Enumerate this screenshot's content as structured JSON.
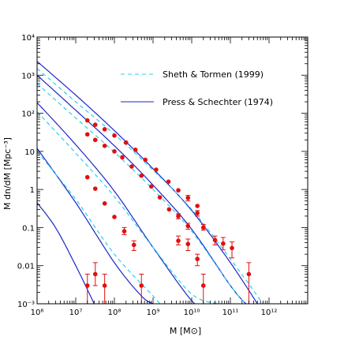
{
  "chart_data": {
    "type": "line",
    "title": "",
    "xlabel": "M  [M⊙]",
    "ylabel": "M dn/dM  [Mpc⁻³]",
    "x_scale": "log",
    "y_scale": "log",
    "xlim": [
      1000000,
      10000000000000
    ],
    "ylim": [
      0.001,
      10000
    ],
    "x_ticks": [
      {
        "value": 1000000,
        "label": "10⁶"
      },
      {
        "value": 10000000,
        "label": "10⁷"
      },
      {
        "value": 100000000,
        "label": "10⁸"
      },
      {
        "value": 1000000000,
        "label": "10⁹"
      },
      {
        "value": 10000000000,
        "label": "10¹⁰"
      },
      {
        "value": 100000000000,
        "label": "10¹¹"
      },
      {
        "value": 1000000000000,
        "label": "10¹²"
      }
    ],
    "y_ticks": [
      {
        "value": 0.001,
        "label": "10⁻³"
      },
      {
        "value": 0.01,
        "label": "0.01"
      },
      {
        "value": 0.1,
        "label": "0.1"
      },
      {
        "value": 1,
        "label": "1"
      },
      {
        "value": 10,
        "label": "10"
      },
      {
        "value": 100,
        "label": "10²"
      },
      {
        "value": 1000,
        "label": "10³"
      },
      {
        "value": 10000,
        "label": "10⁴"
      }
    ],
    "legend": {
      "placement": "top-right",
      "entries": [
        {
          "label": "Sheth & Tormen (1999)",
          "style": "dashed",
          "color": "#22d3ee"
        },
        {
          "label": "Press & Schechter (1974)",
          "style": "solid",
          "color": "#1d27c9"
        }
      ]
    },
    "colors": {
      "press_schechter": "#1d27c9",
      "sheth_tormen": "#22d3ee",
      "points": "#e01010"
    },
    "curves": [
      {
        "model": "Press & Schechter (1974)",
        "style": "solid",
        "x": [
          1000000,
          10000000,
          100000000,
          1000000000,
          10000000000,
          100000000000,
          500000000000
        ],
        "y": [
          2300,
          300,
          35,
          3.5,
          0.28,
          0.012,
          0.001
        ]
      },
      {
        "model": "Press & Schechter (1974)",
        "style": "solid",
        "x": [
          1000000,
          10000000,
          100000000,
          1000000000,
          10000000000,
          100000000000,
          250000000000
        ],
        "y": [
          1000,
          120,
          14,
          1.3,
          0.09,
          0.003,
          0.001
        ]
      },
      {
        "model": "Press & Schechter (1974)",
        "style": "solid",
        "x": [
          1000000,
          10000000,
          100000000,
          1000000000,
          10000000000,
          20000000000
        ],
        "y": [
          190,
          15,
          0.9,
          0.03,
          0.0012,
          0.001
        ]
      },
      {
        "model": "Press & Schechter (1974)",
        "style": "solid",
        "x": [
          1000000,
          10000000,
          100000000,
          500000000,
          1000000000
        ],
        "y": [
          12,
          0.45,
          0.012,
          0.0016,
          0.001
        ]
      },
      {
        "model": "Press & Schechter (1974)",
        "style": "solid",
        "x": [
          1000000,
          3000000,
          10000000,
          30000000
        ],
        "y": [
          0.45,
          0.1,
          0.01,
          0.001
        ]
      },
      {
        "model": "Sheth & Tormen (1999)",
        "style": "dashed",
        "x": [
          1000000,
          10000000,
          100000000,
          1000000000,
          10000000000,
          100000000000,
          700000000000
        ],
        "y": [
          1500,
          200,
          28,
          3.2,
          0.3,
          0.015,
          0.001
        ]
      },
      {
        "model": "Sheth & Tormen (1999)",
        "style": "dashed",
        "x": [
          1000000,
          10000000,
          100000000,
          1000000000,
          10000000000,
          100000000000,
          250000000000
        ],
        "y": [
          600,
          75,
          9.5,
          1,
          0.08,
          0.003,
          0.001
        ]
      },
      {
        "model": "Sheth & Tormen (1999)",
        "style": "dashed",
        "x": [
          1000000,
          10000000,
          100000000,
          1000000000,
          10000000000,
          50000000000
        ],
        "y": [
          110,
          9,
          0.65,
          0.03,
          0.0018,
          0.001
        ]
      },
      {
        "model": "Sheth & Tormen (1999)",
        "style": "dashed",
        "x": [
          1000000,
          10000000,
          100000000,
          1000000000,
          1500000000
        ],
        "y": [
          10,
          0.55,
          0.02,
          0.0016,
          0.001
        ]
      }
    ],
    "points": [
      {
        "x": 20000000,
        "y": 65
      },
      {
        "x": 32000000,
        "y": 50
      },
      {
        "x": 56000000,
        "y": 38
      },
      {
        "x": 100000000,
        "y": 26
      },
      {
        "x": 200000000,
        "y": 17
      },
      {
        "x": 350000000,
        "y": 11
      },
      {
        "x": 630000000,
        "y": 6
      },
      {
        "x": 1200000000,
        "y": 3.3
      },
      {
        "x": 2500000000,
        "y": 1.6
      },
      {
        "x": 4500000000,
        "y": 0.95
      },
      {
        "x": 8000000000,
        "y": 0.6,
        "err": [
          0.5,
          0.7
        ]
      },
      {
        "x": 14000000000,
        "y": 0.37
      },
      {
        "x": 20000000,
        "y": 28
      },
      {
        "x": 32000000,
        "y": 20
      },
      {
        "x": 56000000,
        "y": 14
      },
      {
        "x": 100000000,
        "y": 10
      },
      {
        "x": 160000000,
        "y": 7
      },
      {
        "x": 280000000,
        "y": 4
      },
      {
        "x": 500000000,
        "y": 2.3
      },
      {
        "x": 900000000,
        "y": 1.2
      },
      {
        "x": 1500000000,
        "y": 0.62
      },
      {
        "x": 2600000000,
        "y": 0.3
      },
      {
        "x": 4500000000,
        "y": 0.2,
        "err": [
          0.17,
          0.23
        ]
      },
      {
        "x": 8000000000,
        "y": 0.11,
        "err": [
          0.09,
          0.13
        ]
      },
      {
        "x": 14000000000,
        "y": 0.24,
        "err": [
          0.2,
          0.28
        ]
      },
      {
        "x": 20000000000,
        "y": 0.1,
        "err": [
          0.085,
          0.12
        ]
      },
      {
        "x": 40000000000,
        "y": 0.047,
        "err": [
          0.035,
          0.06
        ]
      },
      {
        "x": 65000000000,
        "y": 0.038,
        "err": [
          0.026,
          0.055
        ]
      },
      {
        "x": 110000000000,
        "y": 0.029,
        "err": [
          0.016,
          0.042
        ]
      },
      {
        "x": 300000000000,
        "y": 0.006,
        "err": [
          0.001,
          0.012
        ]
      },
      {
        "x": 20000000,
        "y": 2.1
      },
      {
        "x": 32000000,
        "y": 1.05
      },
      {
        "x": 56000000,
        "y": 0.43
      },
      {
        "x": 100000000,
        "y": 0.19
      },
      {
        "x": 180000000,
        "y": 0.08,
        "err": [
          0.065,
          0.1
        ]
      },
      {
        "x": 320000000,
        "y": 0.035,
        "err": [
          0.025,
          0.045
        ]
      },
      {
        "x": 4500000000,
        "y": 0.045,
        "err": [
          0.035,
          0.06
        ]
      },
      {
        "x": 8000000000,
        "y": 0.037,
        "err": [
          0.025,
          0.05
        ]
      },
      {
        "x": 14000000000,
        "y": 0.015,
        "err": [
          0.01,
          0.02
        ]
      },
      {
        "x": 20000000000,
        "y": 0.003,
        "err": [
          0.001,
          0.006
        ]
      },
      {
        "x": 20000000,
        "y": 0.003,
        "err": [
          0.001,
          0.006
        ]
      },
      {
        "x": 32000000,
        "y": 0.006,
        "err": [
          0.003,
          0.012
        ]
      },
      {
        "x": 56000000,
        "y": 0.003,
        "err": [
          0.001,
          0.006
        ]
      },
      {
        "x": 500000000,
        "y": 0.003,
        "err": [
          0.001,
          0.006
        ]
      }
    ]
  }
}
